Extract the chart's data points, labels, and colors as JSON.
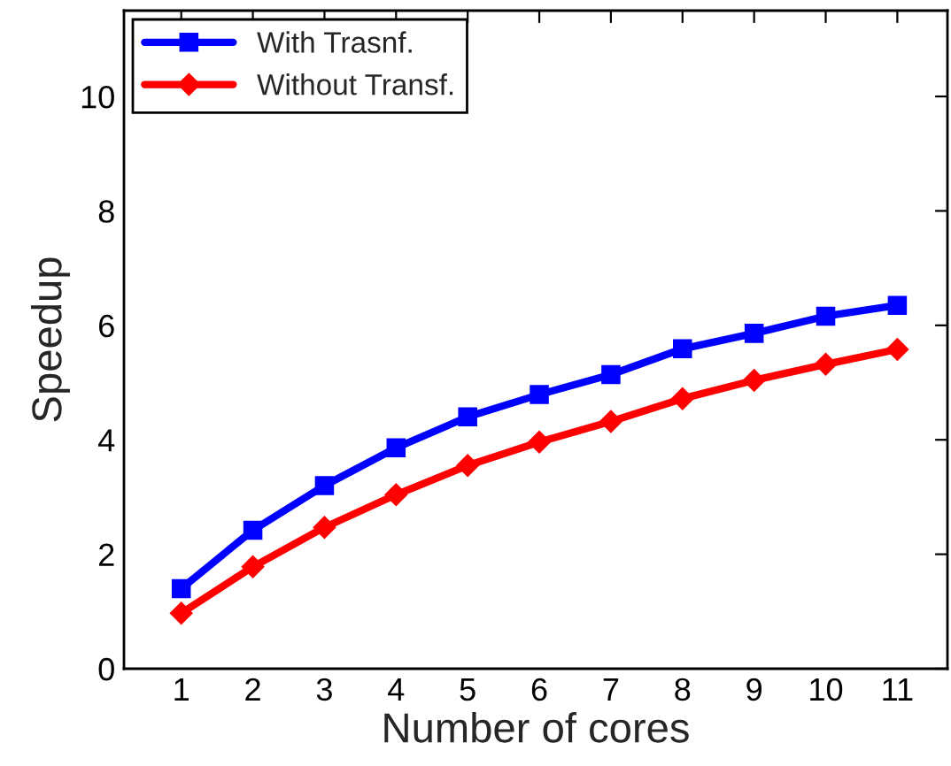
{
  "chart_data": {
    "type": "line",
    "xlabel": "Number of cores",
    "ylabel": "Speedup",
    "x": [
      1,
      2,
      3,
      4,
      5,
      6,
      7,
      8,
      9,
      10,
      11
    ],
    "series": [
      {
        "name": "With Trasnf.",
        "color": "#0000ff",
        "marker": "square",
        "values": [
          1.4,
          2.42,
          3.2,
          3.86,
          4.4,
          4.79,
          5.14,
          5.59,
          5.86,
          6.16,
          6.35
        ]
      },
      {
        "name": "Without Transf.",
        "color": "#ff0000",
        "marker": "diamond",
        "values": [
          0.97,
          1.78,
          2.47,
          3.04,
          3.55,
          3.96,
          4.32,
          4.72,
          5.04,
          5.32,
          5.58
        ]
      }
    ],
    "xlim": [
      0.2,
      11.7
    ],
    "xticks": [
      1,
      2,
      3,
      4,
      5,
      6,
      7,
      8,
      9,
      10,
      11
    ],
    "ylim": [
      0,
      11.5
    ],
    "yticks": [
      0,
      2,
      4,
      6,
      8,
      10
    ],
    "grid": false,
    "legend": "top left",
    "line_style": "solid"
  }
}
